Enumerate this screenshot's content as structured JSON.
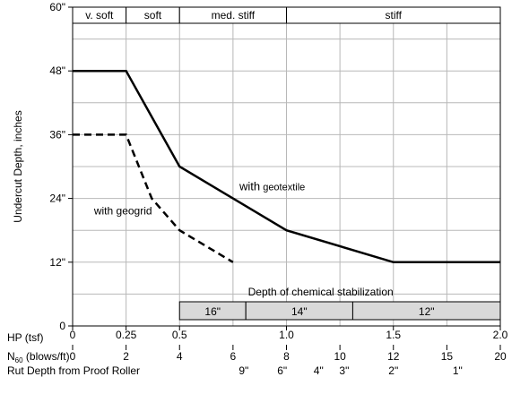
{
  "chart_data": {
    "type": "line",
    "ylabel": "Undercut Depth, inches",
    "xlabel": "HP (tsf)",
    "x_range": [
      0,
      2.0
    ],
    "y_range": [
      0,
      60
    ],
    "grid": true,
    "y_ticks": [
      {
        "value": 0,
        "label": "0"
      },
      {
        "value": 12,
        "label": "12\""
      },
      {
        "value": 24,
        "label": "24\""
      },
      {
        "value": 36,
        "label": "36\""
      },
      {
        "value": 48,
        "label": "48\""
      },
      {
        "value": 60,
        "label": "60\""
      }
    ],
    "x_ticks": [
      {
        "value": 0,
        "label": "0"
      },
      {
        "value": 0.25,
        "label": "0.25"
      },
      {
        "value": 0.5,
        "label": "0.5"
      },
      {
        "value": 1.0,
        "label": "1.0"
      },
      {
        "value": 1.5,
        "label": "1.5"
      },
      {
        "value": 2.0,
        "label": "2.0"
      }
    ],
    "n60_label_main": "N",
    "n60_label_sub": "60",
    "n60_label_rest": " (blows/ft)",
    "n60_ticks": [
      {
        "x": 0,
        "label": "0"
      },
      {
        "x": 0.25,
        "label": "2"
      },
      {
        "x": 0.5,
        "label": "4"
      },
      {
        "x": 0.75,
        "label": "6"
      },
      {
        "x": 1.0,
        "label": "8"
      },
      {
        "x": 1.25,
        "label": "10"
      },
      {
        "x": 1.5,
        "label": "12"
      },
      {
        "x": 1.75,
        "label": "15"
      },
      {
        "x": 2.0,
        "label": "20"
      }
    ],
    "rut_label": "Rut Depth from Proof Roller",
    "rut_ticks": [
      {
        "x": 0.8,
        "label": "9\""
      },
      {
        "x": 0.98,
        "label": "6\""
      },
      {
        "x": 1.15,
        "label": "4\""
      },
      {
        "x": 1.27,
        "label": "3\""
      },
      {
        "x": 1.5,
        "label": "2\""
      },
      {
        "x": 1.8,
        "label": "1\""
      }
    ],
    "consistency_bands": [
      {
        "label": "v. soft",
        "x0": 0,
        "x1": 0.25
      },
      {
        "label": "soft",
        "x0": 0.25,
        "x1": 0.5
      },
      {
        "label": "med. stiff",
        "x0": 0.5,
        "x1": 1.0
      },
      {
        "label": "stiff",
        "x0": 1.0,
        "x1": 2.0
      }
    ],
    "stabilization_title": "Depth of chemical stabilization",
    "stabilization_bands": [
      {
        "label": "16\"",
        "x0": 0.5,
        "x1": 0.81
      },
      {
        "label": "14\"",
        "x0": 0.81,
        "x1": 1.31
      },
      {
        "label": "12\"",
        "x0": 1.31,
        "x1": 2.0
      }
    ],
    "series": [
      {
        "name": "with geotextile",
        "style": "solid",
        "x": [
          0,
          0.25,
          0.5,
          1.0,
          1.5,
          2.0
        ],
        "y": [
          48,
          48,
          30,
          18,
          12,
          12
        ]
      },
      {
        "name": "with geogrid",
        "style": "dashed",
        "x": [
          0,
          0.25,
          0.37,
          0.5,
          0.75
        ],
        "y": [
          36,
          36,
          24,
          18,
          12
        ]
      }
    ],
    "annotations": [
      {
        "text_main": "with",
        "text_rest": " geotextile",
        "x": 0.78,
        "y": 25.5
      },
      {
        "text_main": "with geogrid",
        "text_rest": "",
        "x": 0.1,
        "y": 21
      }
    ]
  }
}
